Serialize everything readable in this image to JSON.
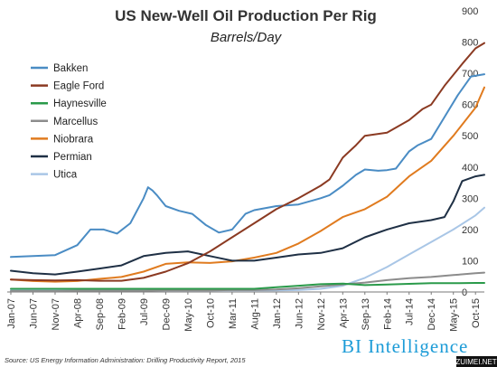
{
  "chart_data": {
    "type": "line",
    "title": "US New-Well Oil Production Per Rig",
    "subtitle": "Barrels/Day",
    "ylim": [
      0,
      900
    ],
    "y_ticks": [
      "0",
      "100",
      "200",
      "300",
      "400",
      "500",
      "600",
      "700",
      "800",
      "900"
    ],
    "x_tick_labels": [
      "Jan-07",
      "Jun-07",
      "Nov-07",
      "Apr-08",
      "Sep-08",
      "Feb-09",
      "Jul-09",
      "Dec-09",
      "May-10",
      "Oct-10",
      "Mar-11",
      "Aug-11",
      "Jan-12",
      "Jun-12",
      "Nov-12",
      "Apr-13",
      "Sep-13",
      "Feb-14",
      "Jul-14",
      "Dec-14",
      "May-15",
      "Oct-15"
    ],
    "x_range": [
      "Jan-07",
      "Dec-15"
    ],
    "legend_position": "top-left",
    "grid": false,
    "series": [
      {
        "name": "Bakken",
        "color": "#4a8cc4",
        "points": [
          [
            "Jan-07",
            112
          ],
          [
            "Jun-07",
            115
          ],
          [
            "Nov-07",
            118
          ],
          [
            "Apr-08",
            150
          ],
          [
            "Jul-08",
            200
          ],
          [
            "Oct-08",
            200
          ],
          [
            "Jan-09",
            187
          ],
          [
            "Apr-09",
            220
          ],
          [
            "Jul-09",
            300
          ],
          [
            "Aug-09",
            335
          ],
          [
            "Sep-09",
            325
          ],
          [
            "Oct-09",
            310
          ],
          [
            "Dec-09",
            275
          ],
          [
            "Mar-10",
            260
          ],
          [
            "Jun-10",
            250
          ],
          [
            "Sep-10",
            215
          ],
          [
            "Dec-10",
            190
          ],
          [
            "Mar-11",
            200
          ],
          [
            "Jun-11",
            250
          ],
          [
            "Aug-11",
            262
          ],
          [
            "Jan-12",
            275
          ],
          [
            "Jun-12",
            280
          ],
          [
            "Nov-12",
            300
          ],
          [
            "Jan-13",
            310
          ],
          [
            "Apr-13",
            340
          ],
          [
            "Jul-13",
            375
          ],
          [
            "Sep-13",
            392
          ],
          [
            "Dec-13",
            388
          ],
          [
            "Feb-14",
            390
          ],
          [
            "Apr-14",
            395
          ],
          [
            "Jul-14",
            450
          ],
          [
            "Sep-14",
            470
          ],
          [
            "Dec-14",
            490
          ],
          [
            "Mar-15",
            560
          ],
          [
            "Jun-15",
            630
          ],
          [
            "Sep-15",
            690
          ],
          [
            "Dec-15",
            697
          ]
        ]
      },
      {
        "name": "Eagle Ford",
        "color": "#8b3a22",
        "points": [
          [
            "Jan-07",
            40
          ],
          [
            "Jun-07",
            38
          ],
          [
            "Nov-07",
            37
          ],
          [
            "Apr-08",
            38
          ],
          [
            "Sep-08",
            36
          ],
          [
            "Feb-09",
            36
          ],
          [
            "Jul-09",
            45
          ],
          [
            "Dec-09",
            65
          ],
          [
            "May-10",
            92
          ],
          [
            "Oct-10",
            130
          ],
          [
            "Mar-11",
            175
          ],
          [
            "Aug-11",
            220
          ],
          [
            "Jan-12",
            265
          ],
          [
            "Jun-12",
            300
          ],
          [
            "Nov-12",
            340
          ],
          [
            "Jan-13",
            360
          ],
          [
            "Apr-13",
            430
          ],
          [
            "Jul-13",
            470
          ],
          [
            "Sep-13",
            500
          ],
          [
            "Feb-14",
            510
          ],
          [
            "Jul-14",
            550
          ],
          [
            "Oct-14",
            585
          ],
          [
            "Dec-14",
            600
          ],
          [
            "Mar-15",
            660
          ],
          [
            "Jul-15",
            730
          ],
          [
            "Oct-15",
            780
          ],
          [
            "Dec-15",
            797
          ]
        ]
      },
      {
        "name": "Haynesville",
        "color": "#2a9a4a",
        "points": [
          [
            "Jan-07",
            10
          ],
          [
            "Jun-07",
            10
          ],
          [
            "Nov-07",
            10
          ],
          [
            "Apr-08",
            10
          ],
          [
            "Sep-08",
            10
          ],
          [
            "Feb-09",
            10
          ],
          [
            "Jul-09",
            10
          ],
          [
            "Dec-09",
            10
          ],
          [
            "May-10",
            10
          ],
          [
            "Oct-10",
            10
          ],
          [
            "Mar-11",
            10
          ],
          [
            "Aug-11",
            10
          ],
          [
            "Jan-12",
            15
          ],
          [
            "Jun-12",
            20
          ],
          [
            "Nov-12",
            25
          ],
          [
            "Apr-13",
            27
          ],
          [
            "Sep-13",
            22
          ],
          [
            "Feb-14",
            24
          ],
          [
            "Jul-14",
            26
          ],
          [
            "Dec-14",
            28
          ],
          [
            "May-15",
            28
          ],
          [
            "Oct-15",
            29
          ],
          [
            "Dec-15",
            29
          ]
        ]
      },
      {
        "name": "Marcellus",
        "color": "#8c8c8c",
        "points": [
          [
            "Jan-07",
            3
          ],
          [
            "Jun-07",
            3
          ],
          [
            "Nov-07",
            3
          ],
          [
            "Apr-08",
            4
          ],
          [
            "Sep-08",
            4
          ],
          [
            "Feb-09",
            4
          ],
          [
            "Jul-09",
            4
          ],
          [
            "Dec-09",
            5
          ],
          [
            "May-10",
            5
          ],
          [
            "Oct-10",
            5
          ],
          [
            "Mar-11",
            6
          ],
          [
            "Aug-11",
            6
          ],
          [
            "Jan-12",
            8
          ],
          [
            "Jun-12",
            12
          ],
          [
            "Nov-12",
            18
          ],
          [
            "Apr-13",
            24
          ],
          [
            "Sep-13",
            30
          ],
          [
            "Feb-14",
            38
          ],
          [
            "Jul-14",
            44
          ],
          [
            "Dec-14",
            48
          ],
          [
            "May-15",
            54
          ],
          [
            "Oct-15",
            60
          ],
          [
            "Dec-15",
            62
          ]
        ]
      },
      {
        "name": "Niobrara",
        "color": "#e07b1f",
        "points": [
          [
            "Jan-07",
            40
          ],
          [
            "Jun-07",
            35
          ],
          [
            "Nov-07",
            33
          ],
          [
            "Apr-08",
            35
          ],
          [
            "Sep-08",
            42
          ],
          [
            "Feb-09",
            48
          ],
          [
            "Jul-09",
            65
          ],
          [
            "Dec-09",
            90
          ],
          [
            "May-10",
            95
          ],
          [
            "Oct-10",
            93
          ],
          [
            "Mar-11",
            98
          ],
          [
            "Aug-11",
            110
          ],
          [
            "Jan-12",
            125
          ],
          [
            "Jun-12",
            155
          ],
          [
            "Nov-12",
            195
          ],
          [
            "Apr-13",
            240
          ],
          [
            "Sep-13",
            265
          ],
          [
            "Feb-14",
            305
          ],
          [
            "Jul-14",
            370
          ],
          [
            "Dec-14",
            420
          ],
          [
            "May-15",
            500
          ],
          [
            "Oct-15",
            590
          ],
          [
            "Dec-15",
            655
          ]
        ]
      },
      {
        "name": "Permian",
        "color": "#1f3045",
        "points": [
          [
            "Jan-07",
            68
          ],
          [
            "Jun-07",
            60
          ],
          [
            "Nov-07",
            56
          ],
          [
            "Apr-08",
            65
          ],
          [
            "Sep-08",
            75
          ],
          [
            "Feb-09",
            85
          ],
          [
            "Jul-09",
            115
          ],
          [
            "Dec-09",
            125
          ],
          [
            "May-10",
            130
          ],
          [
            "Oct-10",
            115
          ],
          [
            "Mar-11",
            100
          ],
          [
            "Aug-11",
            100
          ],
          [
            "Jan-12",
            110
          ],
          [
            "Jun-12",
            120
          ],
          [
            "Nov-12",
            125
          ],
          [
            "Apr-13",
            140
          ],
          [
            "Sep-13",
            175
          ],
          [
            "Feb-14",
            200
          ],
          [
            "Jul-14",
            220
          ],
          [
            "Dec-14",
            230
          ],
          [
            "Mar-15",
            240
          ],
          [
            "May-15",
            290
          ],
          [
            "Jul-15",
            355
          ],
          [
            "Oct-15",
            370
          ],
          [
            "Dec-15",
            375
          ]
        ]
      },
      {
        "name": "Utica",
        "color": "#a9c6e6",
        "points": [
          [
            "Jan-07",
            5
          ],
          [
            "Jun-07",
            5
          ],
          [
            "Nov-07",
            5
          ],
          [
            "Apr-08",
            5
          ],
          [
            "Sep-08",
            5
          ],
          [
            "Feb-09",
            5
          ],
          [
            "Jul-09",
            5
          ],
          [
            "Dec-09",
            5
          ],
          [
            "May-10",
            5
          ],
          [
            "Oct-10",
            5
          ],
          [
            "Mar-11",
            5
          ],
          [
            "Aug-11",
            5
          ],
          [
            "Jan-12",
            5
          ],
          [
            "Jun-12",
            6
          ],
          [
            "Nov-12",
            10
          ],
          [
            "Apr-13",
            20
          ],
          [
            "Sep-13",
            45
          ],
          [
            "Feb-14",
            80
          ],
          [
            "Jul-14",
            120
          ],
          [
            "Dec-14",
            160
          ],
          [
            "May-15",
            200
          ],
          [
            "Oct-15",
            245
          ],
          [
            "Dec-15",
            270
          ]
        ]
      }
    ]
  },
  "footer": {
    "source": "Source: US Energy Information Administration: Drilling Productivity Report, 2015",
    "brand": "BI Intelligence",
    "watermark": "ZUIMEI.NET"
  }
}
